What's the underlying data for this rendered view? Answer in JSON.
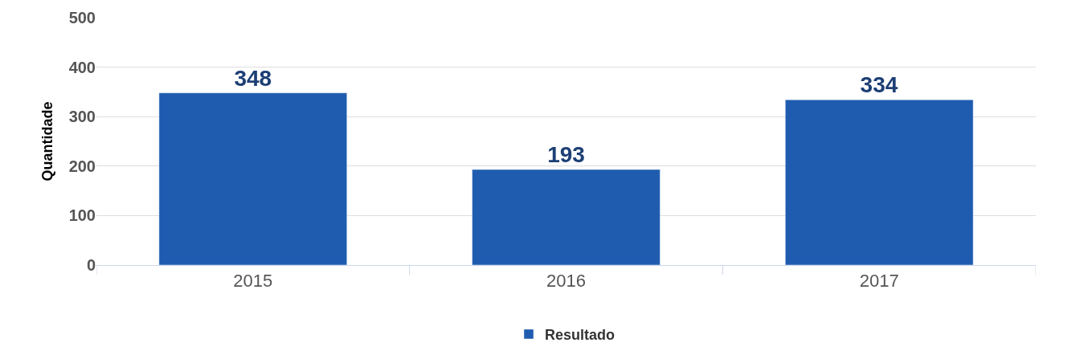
{
  "chart_data": {
    "type": "bar",
    "categories": [
      "2015",
      "2016",
      "2017"
    ],
    "series": [
      {
        "name": "Resultado",
        "color": "#1f5cb0",
        "values": [
          348,
          193,
          334
        ]
      }
    ],
    "ylabel": "Quantidade",
    "ylim": [
      0,
      500
    ],
    "yticks": [
      0,
      100,
      200,
      300,
      400,
      500
    ],
    "grid": "y",
    "legend": "bottom",
    "data_labels": true
  }
}
